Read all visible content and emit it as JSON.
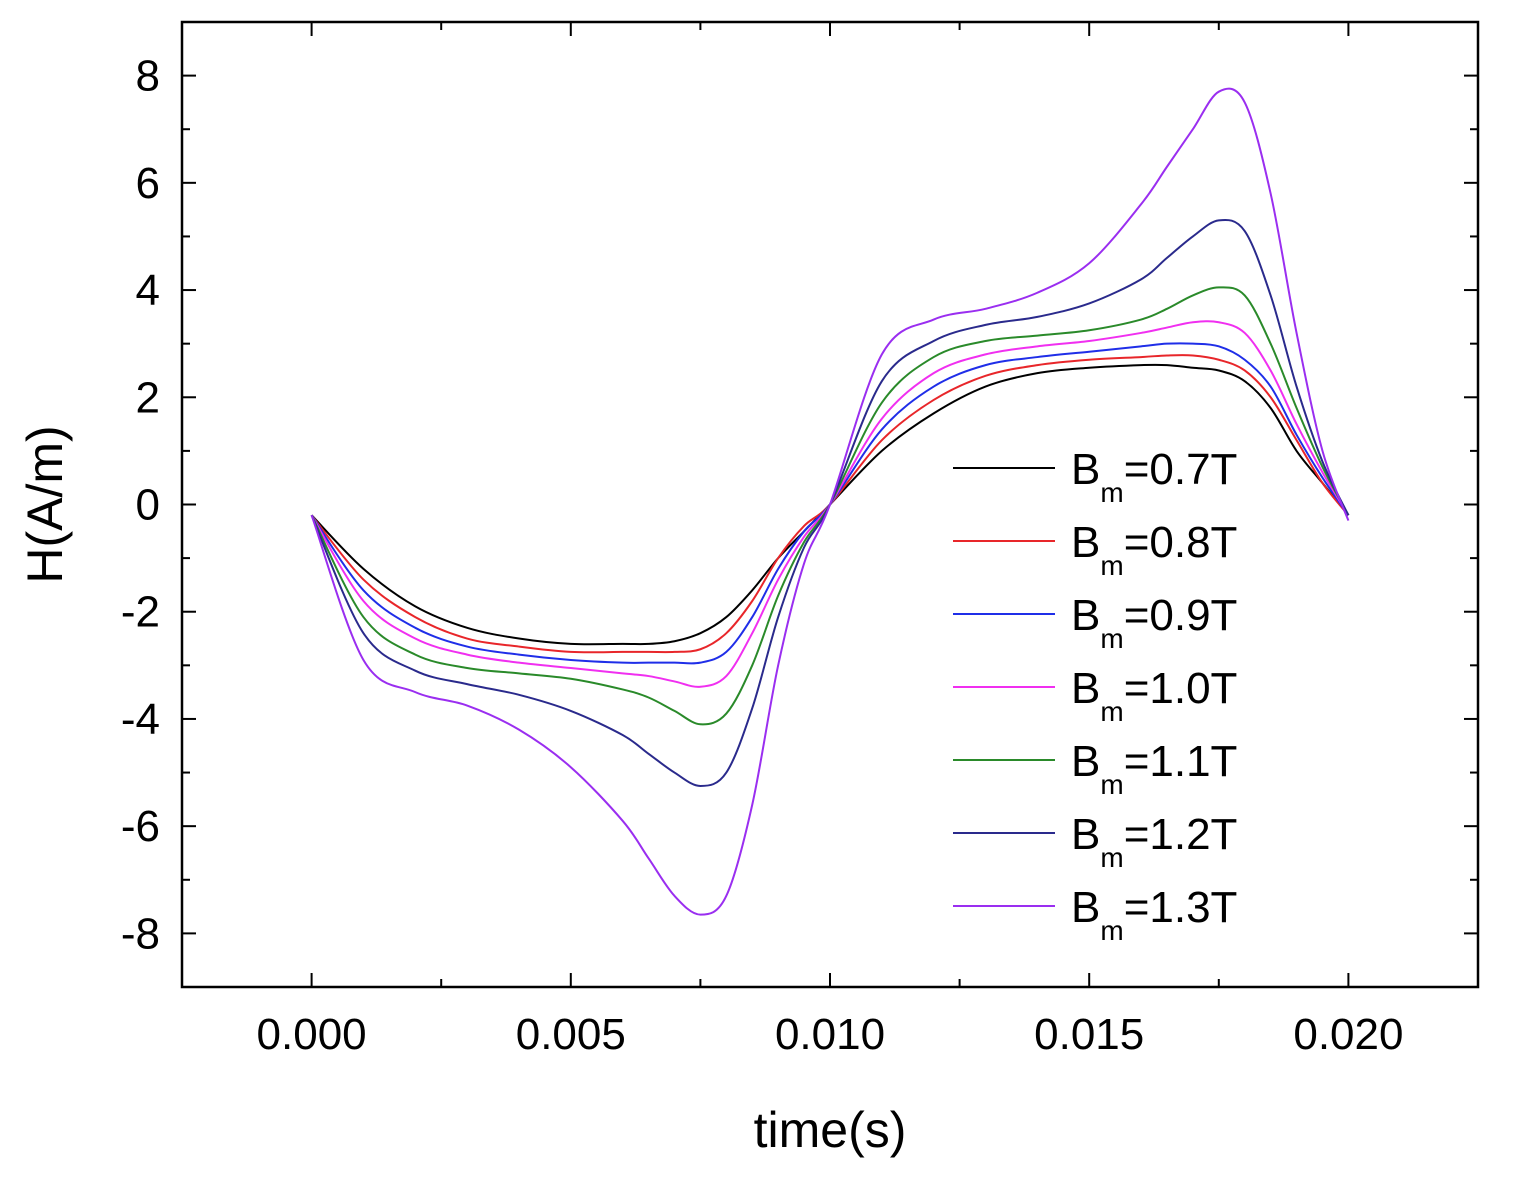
{
  "chart_data": {
    "type": "line",
    "title": "",
    "xlabel": "time(s)",
    "ylabel": "H(A/m)",
    "xlim": [
      -0.0025,
      0.0225
    ],
    "ylim": [
      -9,
      9
    ],
    "xticks": [
      0.0,
      0.005,
      0.01,
      0.015,
      0.02
    ],
    "xtick_labels": [
      "0.000",
      "0.005",
      "0.010",
      "0.015",
      "0.020"
    ],
    "yticks": [
      -8,
      -6,
      -4,
      -2,
      0,
      2,
      4,
      6,
      8
    ],
    "ytick_labels": [
      "-8",
      "-6",
      "-4",
      "-2",
      "0",
      "2",
      "4",
      "6",
      "8"
    ],
    "grid": false,
    "legend_position": "center-right",
    "x": [
      0.0,
      0.001,
      0.002,
      0.003,
      0.004,
      0.005,
      0.006,
      0.0065,
      0.007,
      0.0075,
      0.008,
      0.0085,
      0.009,
      0.0095,
      0.01,
      0.011,
      0.012,
      0.013,
      0.014,
      0.015,
      0.016,
      0.0165,
      0.017,
      0.0175,
      0.018,
      0.0185,
      0.019,
      0.0195,
      0.02
    ],
    "series": [
      {
        "name": "Bm=0.7T",
        "legend_main": "B",
        "legend_sub": "m",
        "legend_rest": "=0.7T",
        "color": "#000000",
        "values": [
          -0.2,
          -1.2,
          -1.9,
          -2.3,
          -2.5,
          -2.6,
          -2.6,
          -2.6,
          -2.55,
          -2.4,
          -2.1,
          -1.6,
          -1.0,
          -0.5,
          0.0,
          1.0,
          1.7,
          2.2,
          2.45,
          2.55,
          2.6,
          2.6,
          2.55,
          2.5,
          2.3,
          1.8,
          1.0,
          0.4,
          -0.2
        ]
      },
      {
        "name": "Bm=0.8T",
        "legend_main": "B",
        "legend_sub": "m",
        "legend_rest": "=0.8T",
        "color": "#e8262a",
        "values": [
          -0.2,
          -1.4,
          -2.1,
          -2.5,
          -2.65,
          -2.75,
          -2.75,
          -2.75,
          -2.75,
          -2.7,
          -2.4,
          -1.8,
          -1.0,
          -0.4,
          0.0,
          1.2,
          1.95,
          2.4,
          2.6,
          2.7,
          2.75,
          2.78,
          2.78,
          2.7,
          2.5,
          2.0,
          1.2,
          0.4,
          -0.2
        ]
      },
      {
        "name": "Bm=0.9T",
        "legend_main": "B",
        "legend_sub": "m",
        "legend_rest": "=0.9T",
        "color": "#1f2ee8",
        "values": [
          -0.2,
          -1.6,
          -2.3,
          -2.65,
          -2.8,
          -2.9,
          -2.95,
          -2.95,
          -2.95,
          -2.95,
          -2.75,
          -2.1,
          -1.2,
          -0.5,
          0.0,
          1.4,
          2.2,
          2.6,
          2.75,
          2.85,
          2.95,
          3.0,
          3.0,
          2.95,
          2.7,
          2.2,
          1.3,
          0.5,
          -0.2
        ]
      },
      {
        "name": "Bm=1.0T",
        "legend_main": "B",
        "legend_sub": "m",
        "legend_rest": "=1.0T",
        "color": "#f02ff0",
        "values": [
          -0.2,
          -1.8,
          -2.5,
          -2.8,
          -2.95,
          -3.05,
          -3.15,
          -3.2,
          -3.3,
          -3.4,
          -3.2,
          -2.4,
          -1.4,
          -0.6,
          0.0,
          1.6,
          2.45,
          2.8,
          2.95,
          3.05,
          3.2,
          3.3,
          3.4,
          3.4,
          3.2,
          2.5,
          1.5,
          0.6,
          -0.2
        ]
      },
      {
        "name": "Bm=1.1T",
        "legend_main": "B",
        "legend_sub": "m",
        "legend_rest": "=1.1T",
        "color": "#2a8a2a",
        "values": [
          -0.2,
          -2.1,
          -2.8,
          -3.05,
          -3.15,
          -3.25,
          -3.45,
          -3.6,
          -3.85,
          -4.1,
          -3.9,
          -3.0,
          -1.7,
          -0.7,
          0.0,
          1.9,
          2.75,
          3.05,
          3.15,
          3.25,
          3.45,
          3.65,
          3.9,
          4.05,
          3.9,
          3.0,
          1.8,
          0.7,
          -0.2
        ]
      },
      {
        "name": "Bm=1.2T",
        "legend_main": "B",
        "legend_sub": "m",
        "legend_rest": "=1.2T",
        "color": "#2a2a8c",
        "values": [
          -0.2,
          -2.4,
          -3.1,
          -3.35,
          -3.55,
          -3.85,
          -4.3,
          -4.65,
          -5.0,
          -5.25,
          -5.0,
          -3.8,
          -2.1,
          -0.8,
          0.0,
          2.3,
          3.05,
          3.35,
          3.5,
          3.75,
          4.2,
          4.6,
          5.0,
          5.3,
          5.1,
          3.9,
          2.2,
          0.8,
          -0.2
        ]
      },
      {
        "name": "Bm=1.3T",
        "legend_main": "B",
        "legend_sub": "m",
        "legend_rest": "=1.3T",
        "color": "#9a2ef0",
        "values": [
          -0.2,
          -2.9,
          -3.5,
          -3.75,
          -4.2,
          -4.9,
          -5.9,
          -6.6,
          -7.3,
          -7.65,
          -7.3,
          -5.6,
          -3.0,
          -1.1,
          0.0,
          2.8,
          3.45,
          3.65,
          3.95,
          4.5,
          5.6,
          6.3,
          7.0,
          7.7,
          7.5,
          5.8,
          3.2,
          1.0,
          -0.3
        ]
      }
    ]
  }
}
